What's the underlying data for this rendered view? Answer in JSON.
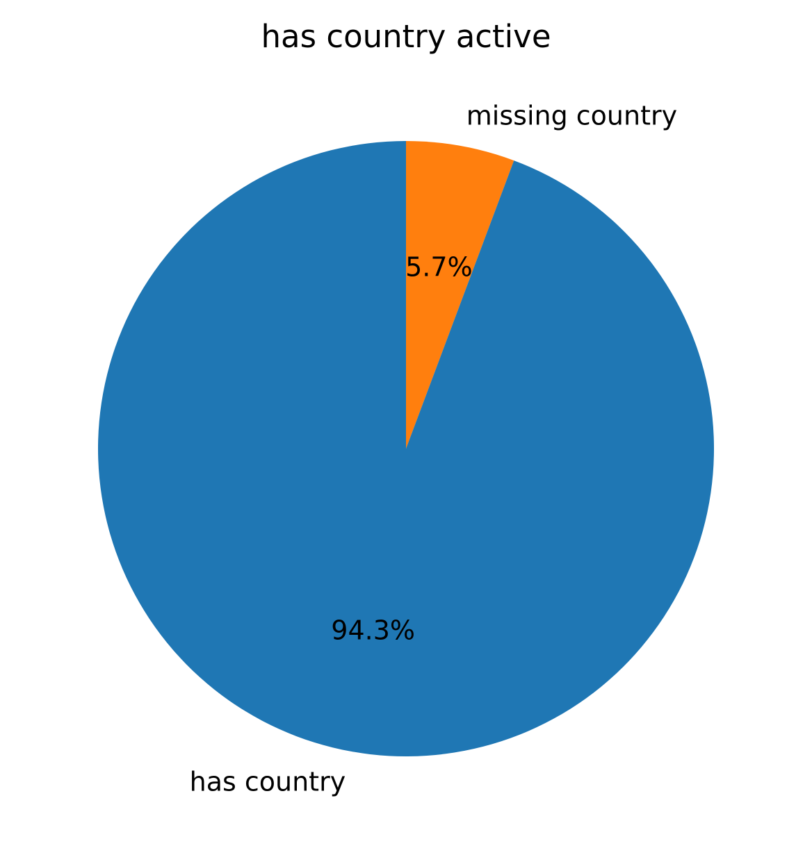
{
  "chart_data": {
    "type": "pie",
    "title": "has country active",
    "start_angle_deg": 90,
    "direction": "clockwise",
    "slices": [
      {
        "label": "missing country",
        "value": 5.7,
        "pct_label": "5.7%",
        "color": "#ff7f0e"
      },
      {
        "label": "has country",
        "value": 94.3,
        "pct_label": "94.3%",
        "color": "#1f77b4"
      }
    ]
  }
}
